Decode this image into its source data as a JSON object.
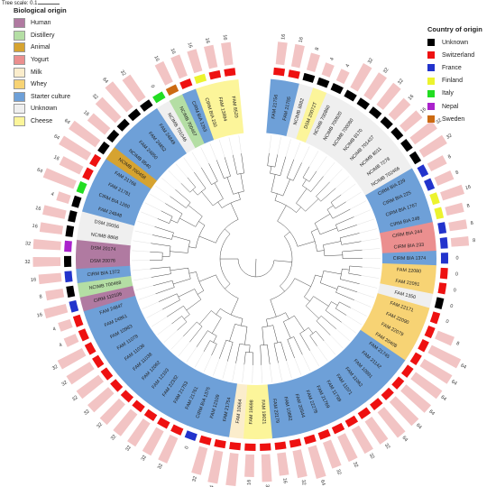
{
  "tree_scale": {
    "label": "Tree scale: 0.1"
  },
  "legend_origin": {
    "title": "Biological origin",
    "items": [
      {
        "label": "Human",
        "color": "#b07aa1"
      },
      {
        "label": "Distillery",
        "color": "#b4dea4"
      },
      {
        "label": "Animal",
        "color": "#d6a330"
      },
      {
        "label": "Yogurt",
        "color": "#eb8f8f"
      },
      {
        "label": "Milk",
        "color": "#fbedcc"
      },
      {
        "label": "Whey",
        "color": "#f7d374"
      },
      {
        "label": "Starter culture",
        "color": "#6ea0d8"
      },
      {
        "label": "Unknown",
        "color": "#efefef"
      },
      {
        "label": "Cheese",
        "color": "#fcf59a"
      }
    ]
  },
  "legend_country": {
    "title": "Country of origin",
    "items": [
      {
        "label": "Unknown",
        "color": "#000000"
      },
      {
        "label": "Switzerland",
        "color": "#ee1111"
      },
      {
        "label": "France",
        "color": "#2233cc"
      },
      {
        "label": "Finland",
        "color": "#ecf32e"
      },
      {
        "label": "Italy",
        "color": "#22dd22"
      },
      {
        "label": "Nepal",
        "color": "#aa22cc"
      },
      {
        "label": "Sweden",
        "color": "#cc6a11"
      }
    ]
  },
  "bar_color": "#f2c4c4",
  "leaves": [
    {
      "name": "FAM 21756",
      "origin": "Starter culture",
      "country": "Switzerland",
      "value": "16"
    },
    {
      "name": "FAM 21755",
      "origin": "Starter culture",
      "country": "Switzerland",
      "value": "16"
    },
    {
      "name": "NCIMB 8882",
      "origin": "Unknown",
      "country": "Unknown",
      "value": "8"
    },
    {
      "name": "DSM 20072T",
      "origin": "Cheese",
      "country": "Unknown",
      "value": "4"
    },
    {
      "name": "NCIMB 700860",
      "origin": "Unknown",
      "country": "Unknown",
      "value": "4"
    },
    {
      "name": "NCIMB 700820",
      "origin": "Unknown",
      "country": "Unknown",
      "value": "32"
    },
    {
      "name": "NCIMB 700080",
      "origin": "Unknown",
      "country": "Unknown",
      "value": "32"
    },
    {
      "name": "NCIMB 8170",
      "origin": "Unknown",
      "country": "Unknown",
      "value": "32"
    },
    {
      "name": "NCIMB 701437",
      "origin": "Unknown",
      "country": "Unknown",
      "value": "16"
    },
    {
      "name": "NCIMB 8011",
      "origin": "Unknown",
      "country": "Unknown",
      "value": "16"
    },
    {
      "name": "NCIMB 7278",
      "origin": "Unknown",
      "country": "Unknown",
      "value": "32"
    },
    {
      "name": "NCIMB 702466",
      "origin": "Unknown",
      "country": "Unknown",
      "value": "32"
    },
    {
      "name": "CIRM BIA 229",
      "origin": "Starter culture",
      "country": "France",
      "value": "8"
    },
    {
      "name": "CIRM BIA 225",
      "origin": "Starter culture",
      "country": "France",
      "value": "8"
    },
    {
      "name": "CIRM BIA 1767",
      "origin": "Starter culture",
      "country": "Finland",
      "value": "16"
    },
    {
      "name": "CIRM BIA 248",
      "origin": "Starter culture",
      "country": "Finland",
      "value": "8"
    },
    {
      "name": "CIRM BIA 244",
      "origin": "Yogurt",
      "country": "France",
      "value": "8"
    },
    {
      "name": "CIRM BIA 233",
      "origin": "Yogurt",
      "country": "France",
      "value": "8"
    },
    {
      "name": "CIRM BIA 1374",
      "origin": "Starter culture",
      "country": "France",
      "value": "0"
    },
    {
      "name": "FAM 22080",
      "origin": "Whey",
      "country": "Switzerland",
      "value": "0"
    },
    {
      "name": "FAM 22091",
      "origin": "Whey",
      "country": "Switzerland",
      "value": "0"
    },
    {
      "name": "FAM 1350",
      "origin": "Unknown",
      "country": "Unknown",
      "value": "0"
    },
    {
      "name": "FAM 22171",
      "origin": "Whey",
      "country": "Switzerland",
      "value": "0"
    },
    {
      "name": "FAM 22090",
      "origin": "Whey",
      "country": "Switzerland",
      "value": "8"
    },
    {
      "name": "FAM 22079",
      "origin": "Whey",
      "country": "Switzerland",
      "value": "64"
    },
    {
      "name": "FAM 20408",
      "origin": "Whey",
      "country": "Switzerland",
      "value": "64"
    },
    {
      "name": "FAM 21745",
      "origin": "Starter culture",
      "country": "Switzerland",
      "value": "64"
    },
    {
      "name": "FAM 21142",
      "origin": "Starter culture",
      "country": "Switzerland",
      "value": "64"
    },
    {
      "name": "FAM 10991",
      "origin": "Starter culture",
      "country": "Switzerland",
      "value": "64"
    },
    {
      "name": "FAM 11062",
      "origin": "Starter culture",
      "country": "Switzerland",
      "value": "64"
    },
    {
      "name": "FAM 11071",
      "origin": "Starter culture",
      "country": "Switzerland",
      "value": "32"
    },
    {
      "name": "FAM 11799",
      "origin": "Starter culture",
      "country": "Switzerland",
      "value": "32"
    },
    {
      "name": "FAM 21769",
      "origin": "Starter culture",
      "country": "Switzerland",
      "value": "32"
    },
    {
      "name": "FAM 22278",
      "origin": "Starter culture",
      "country": "Switzerland",
      "value": "32"
    },
    {
      "name": "FAM 20544",
      "origin": "Starter culture",
      "country": "Switzerland",
      "value": "64"
    },
    {
      "name": "FAM 10882",
      "origin": "Starter culture",
      "country": "Switzerland",
      "value": "32"
    },
    {
      "name": "FAM 22179",
      "origin": "Starter culture",
      "country": "Switzerland",
      "value": "16"
    },
    {
      "name": "FAM 19021",
      "origin": "Cheese",
      "country": "Switzerland",
      "value": "32"
    },
    {
      "name": "FAM 19698",
      "origin": "Cheese",
      "country": "Switzerland",
      "value": "16"
    },
    {
      "name": "FAM 10664",
      "origin": "Milk",
      "country": "Switzerland",
      "value": "64"
    },
    {
      "name": "FAM 21754",
      "origin": "Starter culture",
      "country": "Switzerland",
      "value": "64"
    },
    {
      "name": "FAM 12109",
      "origin": "Starter culture",
      "country": "Switzerland",
      "value": "32"
    },
    {
      "name": "CIRM BIA 1375",
      "origin": "Starter culture",
      "country": "France",
      "value": "0"
    },
    {
      "name": "FAM 21761",
      "origin": "Starter culture",
      "country": "Switzerland",
      "value": "32"
    },
    {
      "name": "FAM 21753",
      "origin": "Starter culture",
      "country": "Switzerland",
      "value": "32"
    },
    {
      "name": "FAM 22332",
      "origin": "Starter culture",
      "country": "Switzerland",
      "value": "32"
    },
    {
      "name": "FAM 12103",
      "origin": "Starter culture",
      "country": "Switzerland",
      "value": "32"
    },
    {
      "name": "FAM 12062",
      "origin": "Starter culture",
      "country": "Switzerland",
      "value": "32"
    },
    {
      "name": "FAM 11038",
      "origin": "Starter culture",
      "country": "Switzerland",
      "value": "32"
    },
    {
      "name": "FAM 11036",
      "origin": "Starter culture",
      "country": "Switzerland",
      "value": "32"
    },
    {
      "name": "FAM 11078",
      "origin": "Starter culture",
      "country": "Switzerland",
      "value": "32"
    },
    {
      "name": "FAM 10983",
      "origin": "Starter culture",
      "country": "Switzerland",
      "value": "32"
    },
    {
      "name": "FAM 24861",
      "origin": "Starter culture",
      "country": "Switzerland",
      "value": "4"
    },
    {
      "name": "FAM 24847",
      "origin": "Starter culture",
      "country": "Switzerland",
      "value": "4"
    },
    {
      "name": "CIRM 110106",
      "origin": "Human",
      "country": "France",
      "value": "16"
    },
    {
      "name": "NCIMB 700468",
      "origin": "Distillery",
      "country": "Unknown",
      "value": "8"
    },
    {
      "name": "CIRM BIA 1372",
      "origin": "Starter culture",
      "country": "France",
      "value": "16"
    },
    {
      "name": "DSM 20076",
      "origin": "Human",
      "country": "Unknown",
      "value": "32"
    },
    {
      "name": "DSM 20174",
      "origin": "Human",
      "country": "Nepal",
      "value": "32"
    },
    {
      "name": "NCIMB 8868",
      "origin": "Unknown",
      "country": "Unknown",
      "value": "16"
    },
    {
      "name": "DSM 20056",
      "origin": "Unknown",
      "country": "Unknown",
      "value": "16"
    },
    {
      "name": "FAM 24848",
      "origin": "Starter culture",
      "country": "Unknown",
      "value": "4"
    },
    {
      "name": "CIRM BIA 1260",
      "origin": "Starter culture",
      "country": "Italy",
      "value": "64"
    },
    {
      "name": "FAM 21781",
      "origin": "Starter culture",
      "country": "Switzerland",
      "value": "16"
    },
    {
      "name": "FAM 21766",
      "origin": "Starter culture",
      "country": "Switzerland",
      "value": "64"
    },
    {
      "name": "NCIMB 700458",
      "origin": "Animal",
      "country": "Unknown",
      "value": "64"
    },
    {
      "name": "NCIMB 8540",
      "origin": "Starter culture",
      "country": "Unknown",
      "value": "16"
    },
    {
      "name": "FAM 24850",
      "origin": "Starter culture",
      "country": "Unknown",
      "value": "32"
    },
    {
      "name": "FAM 24852",
      "origin": "Starter culture",
      "country": "Unknown",
      "value": "64"
    },
    {
      "name": "FAM 24849",
      "origin": "Starter culture",
      "country": "Unknown",
      "value": "32"
    },
    {
      "name": "NCIMB 701046",
      "origin": "Unknown",
      "country": "Italy",
      "value": "0"
    },
    {
      "name": "NCIMB 700467",
      "origin": "Distillery",
      "country": "Sweden",
      "value": "16"
    },
    {
      "name": "CIRM BIA 1263",
      "origin": "Starter culture",
      "country": "Switzerland",
      "value": "16"
    },
    {
      "name": "CIRM BIA 230",
      "origin": "Cheese",
      "country": "Finland",
      "value": "16"
    },
    {
      "name": "FAM 13994",
      "origin": "Cheese",
      "country": "Switzerland",
      "value": "16"
    },
    {
      "name": "FAM 8520",
      "origin": "Cheese",
      "country": "Switzerland",
      "value": "16"
    }
  ]
}
